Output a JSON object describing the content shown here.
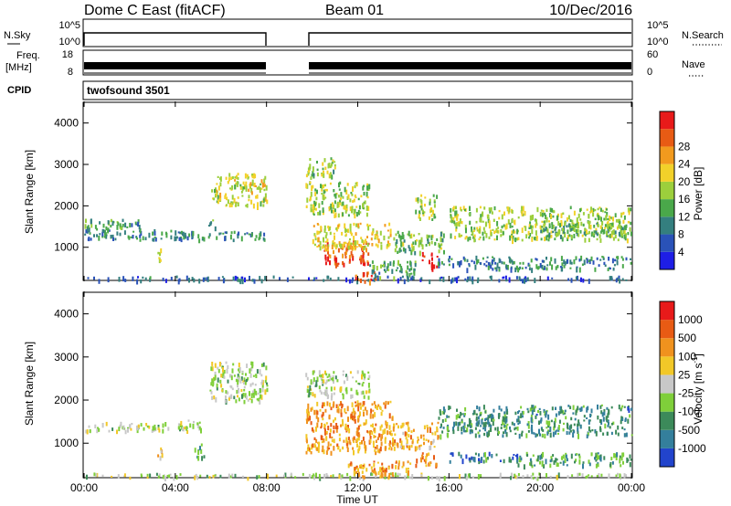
{
  "header": {
    "station": "Dome C East (fitACF)",
    "beam": "Beam 01",
    "date": "10/Dec/2016"
  },
  "strips": {
    "nsky_label": "N.Sky",
    "nsky_ticks": [
      "10^5",
      "10^0"
    ],
    "nsearch_label": "N.Search",
    "nsearch_ticks": [
      "10^5",
      "10^0"
    ],
    "freq_label": "Freq.",
    "freq_unit": "[MHz]",
    "freq_ticks": [
      "18",
      "8"
    ],
    "nave_label": "Nave",
    "nave_ticks": [
      "60",
      "0"
    ],
    "cpid_label": "CPID",
    "cpid_value": "twofsound 3501"
  },
  "chart_data": [
    {
      "type": "heatmap",
      "panel": "power",
      "ylabel": "Slant Range [km]",
      "ylim": [
        200,
        4500
      ],
      "yticks": [
        "1000",
        "2000",
        "3000",
        "4000"
      ],
      "xlabel": "Time UT",
      "xlim": [
        0,
        24
      ],
      "xticks": [
        "00:00",
        "04:00",
        "08:00",
        "12:00",
        "16:00",
        "20:00",
        "00:00"
      ],
      "colorbar": {
        "label": "Power [dB]",
        "ticks": [
          "4",
          "8",
          "12",
          "16",
          "20",
          "24",
          "28"
        ],
        "colors": [
          "#1e1ee6",
          "#2a52b8",
          "#347f7f",
          "#4aa84a",
          "#9ccf3c",
          "#f2d12a",
          "#f29a1e",
          "#e85b14",
          "#e81a1a"
        ]
      },
      "regions": [
        {
          "t": [
            0.0,
            24.0
          ],
          "r": [
            220,
            320
          ],
          "level": 0.2
        },
        {
          "t": [
            0.0,
            4.5
          ],
          "r": [
            1200,
            1450
          ],
          "level": 0.3
        },
        {
          "t": [
            0.0,
            2.5
          ],
          "r": [
            1450,
            1700
          ],
          "level": 0.35
        },
        {
          "t": [
            3.2,
            3.4
          ],
          "r": [
            700,
            1000
          ],
          "level": 0.6
        },
        {
          "t": [
            4.0,
            8.0
          ],
          "r": [
            1200,
            1400
          ],
          "level": 0.3
        },
        {
          "t": [
            5.3,
            5.8
          ],
          "r": [
            1500,
            1700
          ],
          "level": 0.4
        },
        {
          "t": [
            5.5,
            8.0
          ],
          "r": [
            2000,
            2800
          ],
          "level": 0.55
        },
        {
          "t": [
            9.7,
            12.5
          ],
          "r": [
            1800,
            2600
          ],
          "level": 0.5
        },
        {
          "t": [
            9.7,
            11.0
          ],
          "r": [
            2700,
            3200
          ],
          "level": 0.45
        },
        {
          "t": [
            10.5,
            12.5
          ],
          "r": [
            600,
            1200
          ],
          "level": 0.85
        },
        {
          "t": [
            10.0,
            13.5
          ],
          "r": [
            1000,
            1600
          ],
          "level": 0.6
        },
        {
          "t": [
            11.8,
            12.8
          ],
          "r": [
            200,
            450
          ],
          "level": 0.85
        },
        {
          "t": [
            12.5,
            14.5
          ],
          "r": [
            300,
            700
          ],
          "level": 0.35
        },
        {
          "t": [
            13.5,
            15.8
          ],
          "r": [
            900,
            1400
          ],
          "level": 0.45
        },
        {
          "t": [
            14.8,
            15.5
          ],
          "r": [
            500,
            900
          ],
          "level": 0.95
        },
        {
          "t": [
            14.5,
            15.5
          ],
          "r": [
            1700,
            2300
          ],
          "level": 0.5
        },
        {
          "t": [
            15.5,
            18.0
          ],
          "r": [
            500,
            800
          ],
          "level": 0.25
        },
        {
          "t": [
            16.0,
            24.0
          ],
          "r": [
            1200,
            2000
          ],
          "level": 0.5
        },
        {
          "t": [
            18.0,
            24.0
          ],
          "r": [
            500,
            800
          ],
          "level": 0.3
        },
        {
          "t": [
            20.0,
            24.0
          ],
          "r": [
            1300,
            1600
          ],
          "level": 0.4
        }
      ]
    },
    {
      "type": "heatmap",
      "panel": "velocity",
      "ylabel": "Slant Range [km]",
      "ylim": [
        200,
        4500
      ],
      "yticks": [
        "1000",
        "2000",
        "3000",
        "4000"
      ],
      "xlabel": "Time UT",
      "xlim": [
        0,
        24
      ],
      "xticks": [
        "00:00",
        "04:00",
        "08:00",
        "12:00",
        "16:00",
        "20:00",
        "00:00"
      ],
      "colorbar": {
        "label": "Velocity [m s",
        "label_sup": "-1",
        "label_tail": "]",
        "ticks": [
          "1000",
          "500",
          "100",
          "25",
          "-25",
          "-100",
          "-500",
          "-1000"
        ],
        "colors": [
          "#2244cc",
          "#347f9c",
          "#3c8a5a",
          "#7fcf3a",
          "#c8c8c8",
          "#f2c828",
          "#f0921e",
          "#e85b14",
          "#e81a1a"
        ]
      },
      "regions": [
        {
          "t": [
            0.0,
            24.0
          ],
          "r": [
            220,
            320
          ],
          "level": 0.45
        },
        {
          "t": [
            0.0,
            4.5
          ],
          "r": [
            1300,
            1500
          ],
          "level": 0.45
        },
        {
          "t": [
            3.2,
            3.4
          ],
          "r": [
            700,
            1000
          ],
          "level": 0.65
        },
        {
          "t": [
            4.0,
            5.3
          ],
          "r": [
            1350,
            1550
          ],
          "level": 0.45
        },
        {
          "t": [
            4.8,
            5.3
          ],
          "r": [
            700,
            1000
          ],
          "level": 0.3
        },
        {
          "t": [
            5.5,
            8.0
          ],
          "r": [
            2000,
            2900
          ],
          "level": 0.45
        },
        {
          "t": [
            9.7,
            12.5
          ],
          "r": [
            2100,
            2700
          ],
          "level": 0.45
        },
        {
          "t": [
            9.7,
            13.5
          ],
          "r": [
            800,
            2000
          ],
          "level": 0.7
        },
        {
          "t": [
            11.5,
            14.5
          ],
          "r": [
            250,
            600
          ],
          "level": 0.7
        },
        {
          "t": [
            13.5,
            15.5
          ],
          "r": [
            900,
            1500
          ],
          "level": 0.65
        },
        {
          "t": [
            14.5,
            15.5
          ],
          "r": [
            500,
            800
          ],
          "level": 0.75
        },
        {
          "t": [
            15.5,
            24.0
          ],
          "r": [
            1200,
            1900
          ],
          "level": 0.25
        },
        {
          "t": [
            16.0,
            19.0
          ],
          "r": [
            600,
            800
          ],
          "level": 0.2
        },
        {
          "t": [
            19.0,
            24.0
          ],
          "r": [
            500,
            800
          ],
          "level": 0.3
        }
      ]
    }
  ]
}
